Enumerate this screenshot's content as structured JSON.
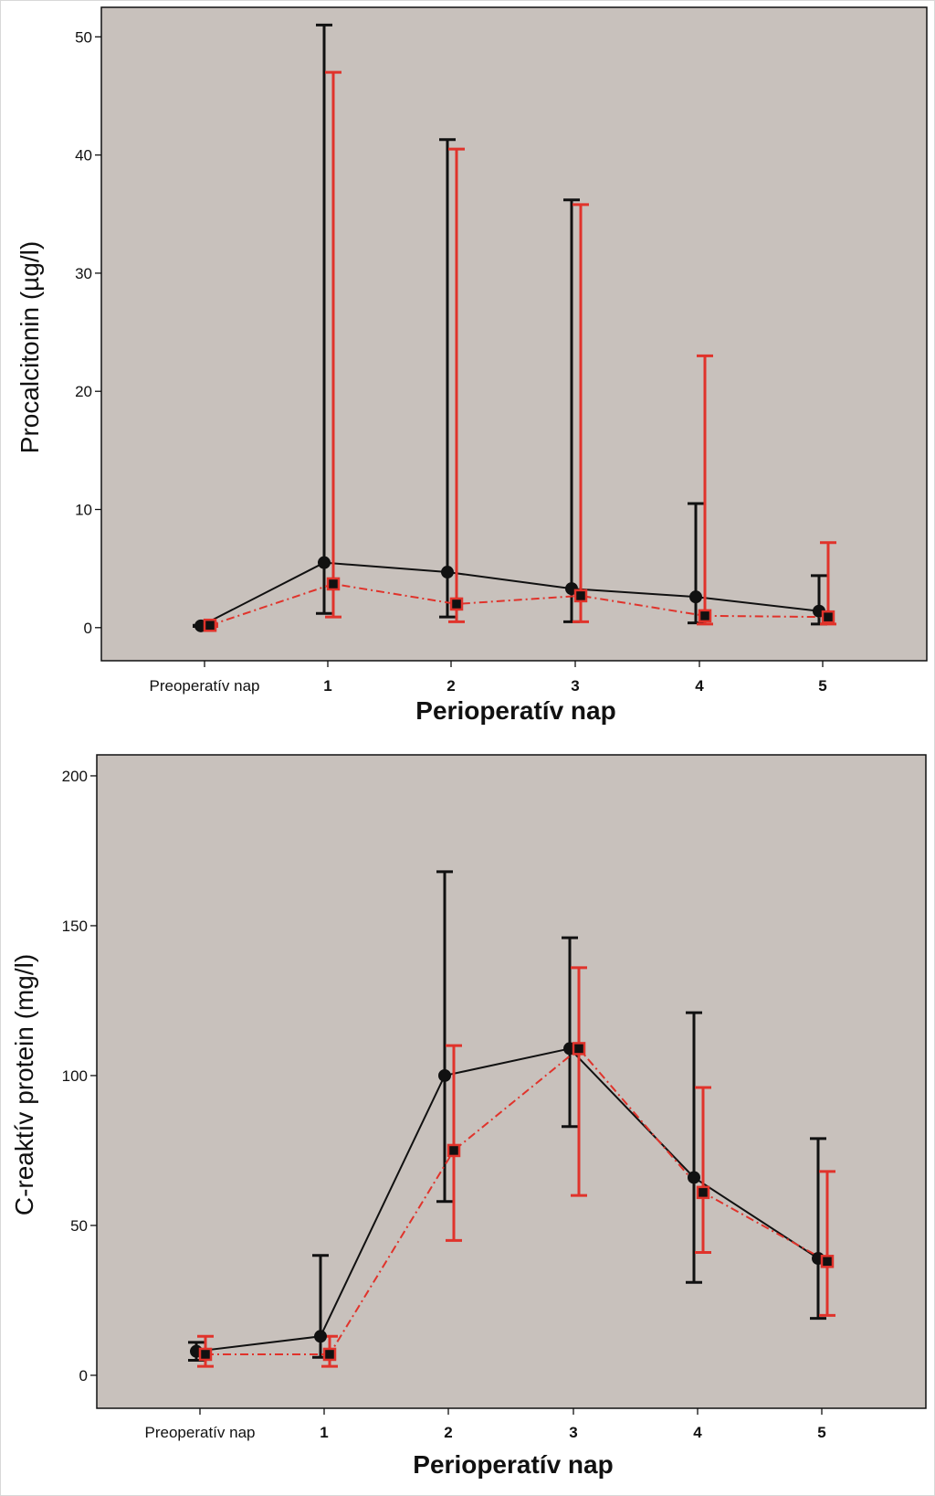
{
  "chart_data": [
    {
      "type": "line",
      "title": "",
      "xlabel": "Perioperatív nap",
      "ylabel": "Procalcitonin (µg/l)",
      "categories": [
        "Preoperatív nap",
        "1",
        "2",
        "3",
        "4",
        "5"
      ],
      "ylim": [
        -2.8,
        52.5
      ],
      "yticks": [
        0,
        10,
        20,
        30,
        40,
        50
      ],
      "series": [
        {
          "name": "group-black",
          "color": "#111111",
          "line_style": "solid",
          "marker": "circle",
          "values": [
            0.15,
            5.5,
            4.7,
            3.3,
            2.6,
            1.4
          ],
          "err_low": [
            0.1,
            1.2,
            0.9,
            0.5,
            0.4,
            0.3
          ],
          "err_high": [
            0.2,
            51.0,
            41.3,
            36.2,
            10.5,
            4.4
          ]
        },
        {
          "name": "group-red",
          "color": "#e0332b",
          "line_style": "dashdot",
          "marker": "square",
          "values": [
            0.2,
            3.7,
            2.0,
            2.7,
            1.0,
            0.9
          ],
          "err_low": [
            0.1,
            0.9,
            0.5,
            0.5,
            0.3,
            0.3
          ],
          "err_high": [
            0.3,
            47.0,
            40.5,
            35.8,
            23.0,
            7.2
          ]
        }
      ]
    },
    {
      "type": "line",
      "title": "",
      "xlabel": "Perioperatív nap",
      "ylabel": "C-reaktív protein (mg/l)",
      "categories": [
        "Preoperatív nap",
        "1",
        "2",
        "3",
        "4",
        "5"
      ],
      "ylim": [
        -11,
        207
      ],
      "yticks": [
        0,
        50,
        100,
        150,
        200
      ],
      "series": [
        {
          "name": "group-black",
          "color": "#111111",
          "line_style": "solid",
          "marker": "circle",
          "values": [
            8,
            13,
            100,
            109,
            66,
            39
          ],
          "err_low": [
            5,
            6,
            58,
            83,
            31,
            19
          ],
          "err_high": [
            11,
            40,
            168,
            146,
            121,
            79
          ]
        },
        {
          "name": "group-red",
          "color": "#e0332b",
          "line_style": "dashdot",
          "marker": "square",
          "values": [
            7,
            7,
            75,
            109,
            61,
            38
          ],
          "err_low": [
            3,
            3,
            45,
            60,
            41,
            20
          ],
          "err_high": [
            13,
            13,
            110,
            136,
            96,
            68
          ]
        }
      ]
    }
  ]
}
